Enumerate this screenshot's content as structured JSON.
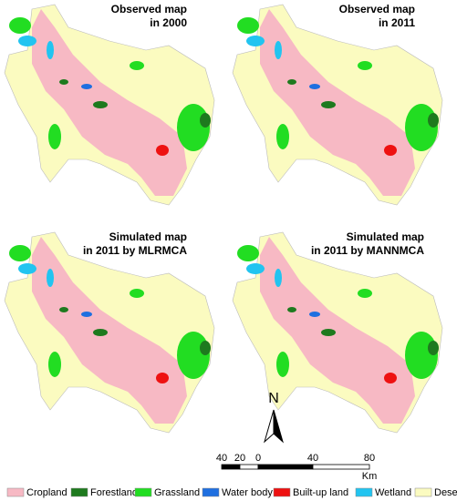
{
  "panels": [
    {
      "title_lines": [
        "Observed map",
        "in 2000"
      ]
    },
    {
      "title_lines": [
        "Observed map",
        "in 2011"
      ]
    },
    {
      "title_lines": [
        "Simulated map",
        "in 2011 by MLRMCA"
      ]
    },
    {
      "title_lines": [
        "Simulated map",
        "in 2011 by MANNMCA"
      ]
    }
  ],
  "north_arrow": {
    "label": "N"
  },
  "scale_bar": {
    "labels": [
      40,
      20,
      0,
      40,
      80
    ],
    "unit": "Km"
  },
  "legend": {
    "items": [
      {
        "label": "Cropland",
        "color": "#f7b9c4"
      },
      {
        "label": "Forestland",
        "color": "#1e7a1e"
      },
      {
        "label": "Grassland",
        "color": "#22dd22"
      },
      {
        "label": "Water body",
        "color": "#1f6fe0"
      },
      {
        "label": "Built-up land",
        "color": "#ee1111"
      },
      {
        "label": "Wetland",
        "color": "#22c4f0"
      },
      {
        "label": "Desert",
        "color": "#fbfbc0"
      }
    ]
  }
}
